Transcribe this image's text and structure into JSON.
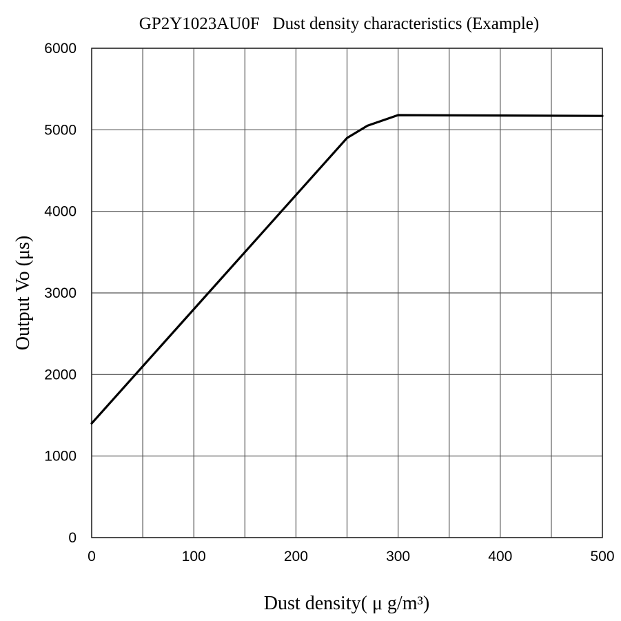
{
  "chart_data": {
    "type": "line",
    "title": "GP2Y1023AU0F   Dust density characteristics (Example)",
    "xlabel": "Dust density( μ g/m³)",
    "ylabel": "Output Vo (μs)",
    "xlim": [
      0,
      500
    ],
    "ylim": [
      0,
      6000
    ],
    "xticks": [
      0,
      100,
      200,
      300,
      400,
      500
    ],
    "xtick_labels": [
      "0",
      "100",
      "200",
      "300",
      "400",
      "500"
    ],
    "yticks": [
      0,
      1000,
      2000,
      3000,
      4000,
      5000,
      6000
    ],
    "ytick_labels": [
      "0",
      "1000",
      "2000",
      "3000",
      "4000",
      "5000",
      "6000"
    ],
    "x_gridlines": [
      0,
      50,
      100,
      150,
      200,
      250,
      300,
      350,
      400,
      450,
      500
    ],
    "y_gridlines": [
      0,
      1000,
      2000,
      3000,
      4000,
      5000,
      6000
    ],
    "grid": true,
    "series": [
      {
        "color": "#000000",
        "x": [
          0,
          250,
          270,
          300,
          500
        ],
        "y": [
          1400,
          4900,
          5050,
          5180,
          5170
        ]
      }
    ]
  }
}
